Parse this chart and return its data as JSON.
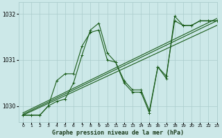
{
  "title": "Graphe pression niveau de la mer (hPa)",
  "background_color": "#cce8e8",
  "grid_color": "#aacccc",
  "line_color": "#1a5c1a",
  "xlim": [
    -0.5,
    23
  ],
  "ylim": [
    1029.65,
    1032.25
  ],
  "yticks": [
    1030,
    1031,
    1032
  ],
  "xticks": [
    0,
    1,
    2,
    3,
    4,
    5,
    6,
    7,
    8,
    9,
    10,
    11,
    12,
    13,
    14,
    15,
    16,
    17,
    18,
    19,
    20,
    21,
    22,
    23
  ],
  "series_zigzag1": {
    "x": [
      0,
      1,
      2,
      3,
      4,
      5,
      6,
      7,
      8,
      9,
      10,
      11,
      12,
      13,
      14,
      15,
      16,
      17,
      18,
      19,
      20,
      21,
      22,
      23
    ],
    "y": [
      1029.8,
      1029.8,
      1029.8,
      1030.0,
      1030.55,
      1030.7,
      1030.7,
      1031.3,
      1031.6,
      1031.65,
      1031.0,
      1030.95,
      1030.5,
      1030.3,
      1030.3,
      1029.85,
      1030.85,
      1030.6,
      1031.95,
      1031.75,
      1031.75,
      1031.85,
      1031.85,
      1031.85
    ]
  },
  "series_zigzag2": {
    "x": [
      0,
      1,
      2,
      3,
      4,
      5,
      6,
      7,
      8,
      9,
      10,
      11,
      12,
      13,
      14,
      15,
      16,
      17,
      18,
      19,
      20,
      21,
      22,
      23
    ],
    "y": [
      1029.8,
      1029.8,
      1029.8,
      1030.0,
      1030.1,
      1030.15,
      1030.5,
      1031.1,
      1031.65,
      1031.8,
      1031.15,
      1030.95,
      1030.55,
      1030.35,
      1030.35,
      1029.9,
      1030.85,
      1030.65,
      1031.85,
      1031.75,
      1031.75,
      1031.85,
      1031.85,
      1031.85
    ]
  },
  "trend_lines": [
    {
      "x": [
        0,
        23
      ],
      "y": [
        1029.8,
        1031.75
      ]
    },
    {
      "x": [
        0,
        23
      ],
      "y": [
        1029.82,
        1031.85
      ]
    },
    {
      "x": [
        0,
        23
      ],
      "y": [
        1029.85,
        1031.9
      ]
    }
  ]
}
